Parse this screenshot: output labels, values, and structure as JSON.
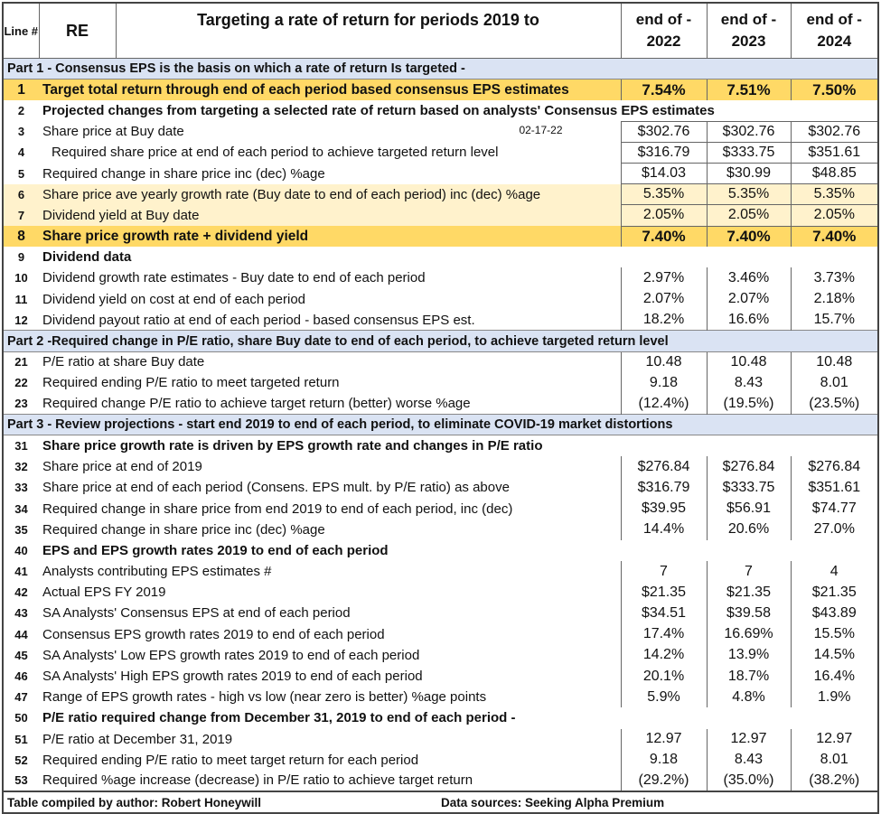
{
  "header": {
    "line_label": "Line #",
    "ticker": "RE",
    "title": "Targeting a rate of return for periods 2019 to",
    "periods": [
      {
        "top": "end of -",
        "year": "2022"
      },
      {
        "top": "end of -",
        "year": "2023"
      },
      {
        "top": "end of -",
        "year": "2024"
      }
    ]
  },
  "rows": [
    {
      "style": "section",
      "label": "Part 1 - Consensus EPS is the basis on which a rate of return Is targeted -"
    },
    {
      "style": "gold",
      "line": "1",
      "label": "Target total return through end of each period based consensus EPS estimates",
      "values": [
        "7.54%",
        "7.51%",
        "7.50%"
      ]
    },
    {
      "style": "bold",
      "line": "2",
      "label": "Projected changes from targeting a selected rate of return based on analysts' Consensus EPS estimates"
    },
    {
      "style": "boxed",
      "line": "3",
      "label": "Share price at Buy date",
      "note": "02-17-22",
      "values": [
        "$302.76",
        "$302.76",
        "$302.76"
      ]
    },
    {
      "style": "boxed",
      "line": "4",
      "indent": true,
      "label": "Required share price at end of each period to achieve targeted return level",
      "values": [
        "$316.79",
        "$333.75",
        "$351.61"
      ]
    },
    {
      "style": "boxed",
      "line": "5",
      "label": "Required change in share price inc (dec) %age",
      "values": [
        "$14.03",
        "$30.99",
        "$48.85"
      ]
    },
    {
      "style": "cream",
      "line": "6",
      "label": "Share price ave yearly growth rate (Buy date to end of each period) inc (dec) %age",
      "values": [
        "5.35%",
        "5.35%",
        "5.35%"
      ]
    },
    {
      "style": "cream",
      "line": "7",
      "label": "Dividend yield at Buy date",
      "values": [
        "2.05%",
        "2.05%",
        "2.05%"
      ]
    },
    {
      "style": "gold",
      "line": "8",
      "label": "Share price growth rate + dividend yield",
      "values": [
        "7.40%",
        "7.40%",
        "7.40%"
      ]
    },
    {
      "style": "bold",
      "line": "9",
      "label": "Dividend data"
    },
    {
      "line": "10",
      "label": "Dividend growth rate estimates  - Buy date to end of each period",
      "values": [
        "2.97%",
        "3.46%",
        "3.73%"
      ]
    },
    {
      "line": "11",
      "label": "Dividend yield on cost at end of each period",
      "values": [
        "2.07%",
        "2.07%",
        "2.18%"
      ]
    },
    {
      "line": "12",
      "label": "Dividend payout ratio at end of each period - based consensus EPS est.",
      "values": [
        "18.2%",
        "16.6%",
        "15.7%"
      ]
    },
    {
      "style": "section",
      "label": "Part 2 -Required change in P/E ratio, share Buy date to end of each period, to achieve targeted return level"
    },
    {
      "line": "21",
      "label": "P/E ratio at share Buy date",
      "values": [
        "10.48",
        "10.48",
        "10.48"
      ]
    },
    {
      "line": "22",
      "label": "Required ending P/E ratio to meet targeted return",
      "values": [
        "9.18",
        "8.43",
        "8.01"
      ]
    },
    {
      "line": "23",
      "label": "Required change P/E ratio to achieve target return (better) worse %age",
      "values": [
        "(12.4%)",
        "(19.5%)",
        "(23.5%)"
      ]
    },
    {
      "style": "section",
      "label": "Part 3 - Review projections - start end 2019 to end of each period, to eliminate COVID-19 market distortions"
    },
    {
      "style": "bold",
      "line": "31",
      "label": "Share price growth rate is driven by EPS growth rate and changes in P/E ratio"
    },
    {
      "line": "32",
      "label": "Share price at end of 2019",
      "values": [
        "$276.84",
        "$276.84",
        "$276.84"
      ]
    },
    {
      "line": "33",
      "label": "Share price at end of each period (Consens. EPS mult. by P/E ratio) as above",
      "values": [
        "$316.79",
        "$333.75",
        "$351.61"
      ]
    },
    {
      "line": "34",
      "label": "Required change in share price from end 2019 to end of each period, inc (dec)",
      "values": [
        "$39.95",
        "$56.91",
        "$74.77"
      ]
    },
    {
      "line": "35",
      "label": "Required change in share price inc (dec) %age",
      "values": [
        "14.4%",
        "20.6%",
        "27.0%"
      ]
    },
    {
      "style": "bold",
      "line": "40",
      "label": "EPS and EPS growth rates 2019 to end of each period"
    },
    {
      "line": "41",
      "label": "Analysts contributing EPS estimates #",
      "values": [
        "7",
        "7",
        "4"
      ]
    },
    {
      "line": "42",
      "label": "Actual EPS FY 2019",
      "values": [
        "$21.35",
        "$21.35",
        "$21.35"
      ]
    },
    {
      "line": "43",
      "label": "SA Analysts' Consensus EPS at end of each period",
      "values": [
        "$34.51",
        "$39.58",
        "$43.89"
      ]
    },
    {
      "line": "44",
      "label": "Consensus EPS growth rates 2019 to end of each period",
      "values": [
        "17.4%",
        "16.69%",
        "15.5%"
      ]
    },
    {
      "line": "45",
      "label": "SA Analysts' Low EPS growth rates 2019 to end of each period",
      "values": [
        "14.2%",
        "13.9%",
        "14.5%"
      ]
    },
    {
      "line": "46",
      "label": "SA Analysts' High EPS growth rates 2019 to end of each period",
      "values": [
        "20.1%",
        "18.7%",
        "16.4%"
      ]
    },
    {
      "line": "47",
      "label": "Range of EPS growth rates - high vs low (near zero is better) %age points",
      "values": [
        "5.9%",
        "4.8%",
        "1.9%"
      ]
    },
    {
      "style": "bold",
      "line": "50",
      "label": "P/E ratio required change from December 31, 2019 to end of each period -"
    },
    {
      "line": "51",
      "label": "P/E ratio at December 31, 2019",
      "values": [
        "12.97",
        "12.97",
        "12.97"
      ]
    },
    {
      "line": "52",
      "label": "Required ending P/E ratio to meet target return for each period",
      "values": [
        "9.18",
        "8.43",
        "8.01"
      ]
    },
    {
      "line": "53",
      "label": "Required %age increase (decrease) in P/E ratio to achieve target return",
      "values": [
        "(29.2%)",
        "(35.0%)",
        "(38.2%)"
      ]
    }
  ],
  "footer": {
    "author": "Table compiled by author: Robert Honeywill",
    "sources": "Data sources: Seeking Alpha Premium"
  }
}
